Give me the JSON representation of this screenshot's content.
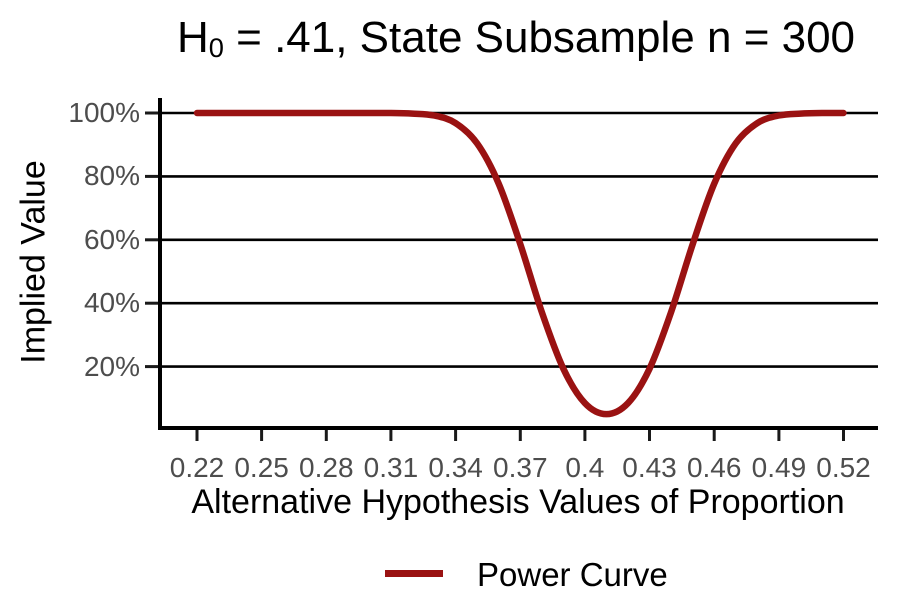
{
  "title": {
    "prefix": "H",
    "subscript": "0",
    "suffix": " = .41, State Subsample n = 300"
  },
  "colors": {
    "curve": "#9a1212",
    "axis": "#000000",
    "tick_marks": "#1a1a1a",
    "tick_labels": "#4d4d4d",
    "text": "#000000"
  },
  "chart_data": {
    "type": "line",
    "title": "H0 = .41, State Subsample n = 300",
    "xlabel": "Alternative Hypothesis Values of Proportion",
    "ylabel": "Implied Value",
    "x_ticks": [
      "0.22",
      "0.25",
      "0.28",
      "0.31",
      "0.34",
      "0.37",
      "0.4",
      "0.43",
      "0.46",
      "0.49",
      "0.52"
    ],
    "x_tick_values": [
      0.22,
      0.25,
      0.28,
      0.31,
      0.34,
      0.37,
      0.4,
      0.43,
      0.46,
      0.49,
      0.52
    ],
    "y_ticks": [
      "100%",
      "80%",
      "60%",
      "40%",
      "20%"
    ],
    "y_tick_values": [
      100,
      80,
      60,
      40,
      20
    ],
    "xlim": [
      0.203,
      0.536
    ],
    "ylim": [
      0,
      104
    ],
    "grid": "horizontal-major-only-black",
    "legend": {
      "position": "bottom",
      "entries": [
        {
          "label": "Power Curve",
          "color": "#9a1212"
        }
      ]
    },
    "series": [
      {
        "name": "Power Curve",
        "color": "#9a1212",
        "x": [
          0.22,
          0.23,
          0.24,
          0.25,
          0.26,
          0.27,
          0.28,
          0.29,
          0.3,
          0.31,
          0.32,
          0.33,
          0.34,
          0.35,
          0.36,
          0.37,
          0.38,
          0.39,
          0.4,
          0.41,
          0.42,
          0.43,
          0.44,
          0.45,
          0.46,
          0.47,
          0.48,
          0.49,
          0.5,
          0.51,
          0.52
        ],
        "y_percent": [
          100,
          100,
          100,
          100,
          100,
          100,
          100,
          100,
          100,
          100,
          99.8,
          99.2,
          96.8,
          90.4,
          77.7,
          58.6,
          37.2,
          19.3,
          8.5,
          5.0,
          8.5,
          19.3,
          37.2,
          58.6,
          77.7,
          90.4,
          96.8,
          99.2,
          99.8,
          100,
          100
        ]
      }
    ]
  }
}
